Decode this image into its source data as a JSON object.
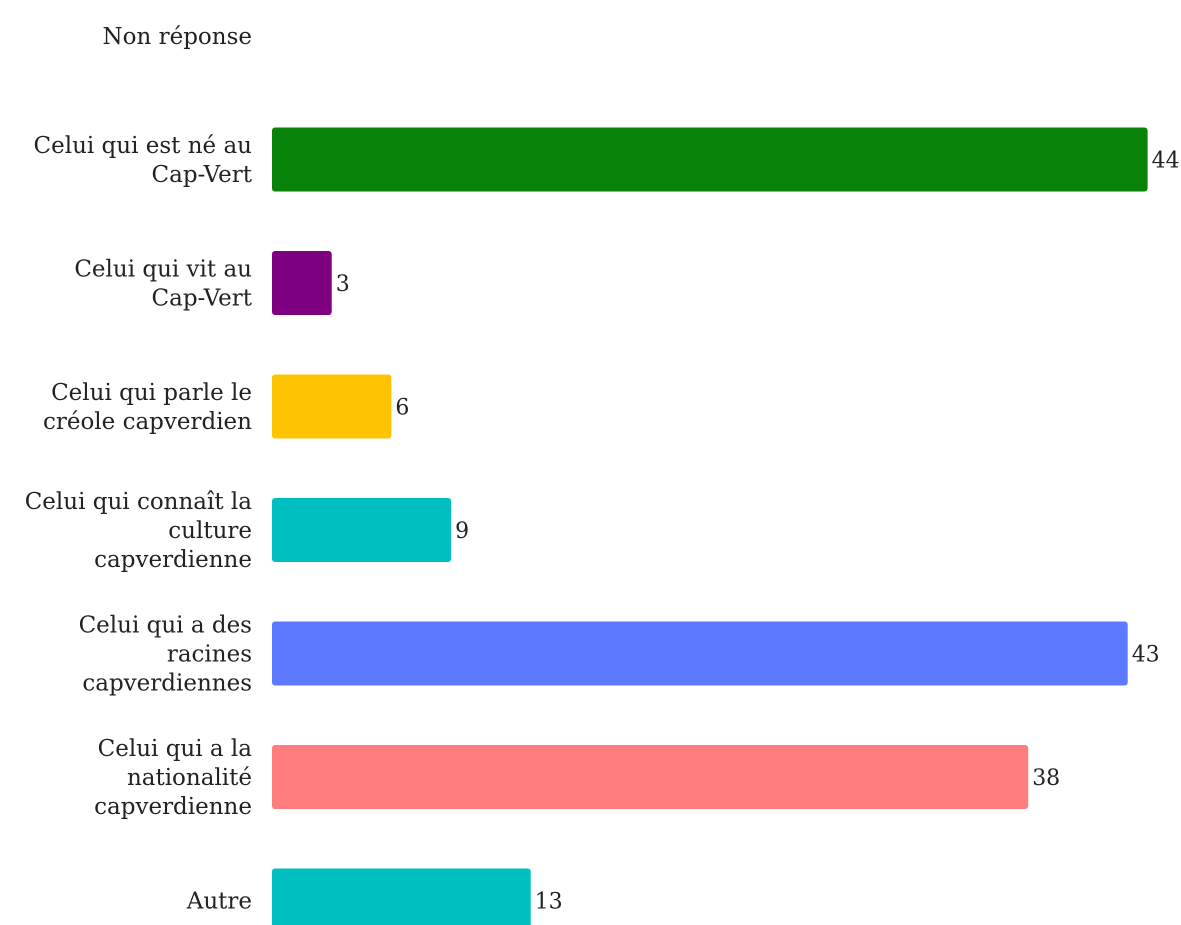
{
  "chart_data": {
    "type": "bar",
    "orientation": "horizontal",
    "title": "",
    "xlabel": "",
    "ylabel": "",
    "grid": false,
    "xlim": [
      0,
      44
    ],
    "categories": [
      "Non réponse",
      "Celui qui est né au Cap-Vert",
      "Celui qui vit au Cap-Vert",
      "Celui qui parle le créole capverdien",
      "Celui qui connaît la culture capverdienne",
      "Celui qui a des racines capverdiennes",
      "Celui qui a la nationalité capverdienne",
      "Autre"
    ],
    "category_lines": [
      [
        "Non réponse"
      ],
      [
        "Celui qui est né au",
        "Cap-Vert"
      ],
      [
        "Celui qui vit au",
        "Cap-Vert"
      ],
      [
        "Celui qui parle le",
        "créole capverdien"
      ],
      [
        "Celui qui connaît la",
        "culture",
        "capverdienne"
      ],
      [
        "Celui qui a des",
        "racines",
        "capverdiennes"
      ],
      [
        "Celui qui a la",
        "nationalité",
        "capverdienne"
      ],
      [
        "Autre"
      ]
    ],
    "values": [
      null,
      44,
      3,
      6,
      9,
      43,
      38,
      13
    ],
    "value_labels": [
      "",
      "44",
      "3",
      "6",
      "9",
      "43",
      "38",
      "13"
    ],
    "colors": [
      "#ffffff",
      "#088208",
      "#7f0081",
      "#fec401",
      "#00bfc0",
      "#5d79ff",
      "#ff7c7f",
      "#00bfc0"
    ]
  }
}
